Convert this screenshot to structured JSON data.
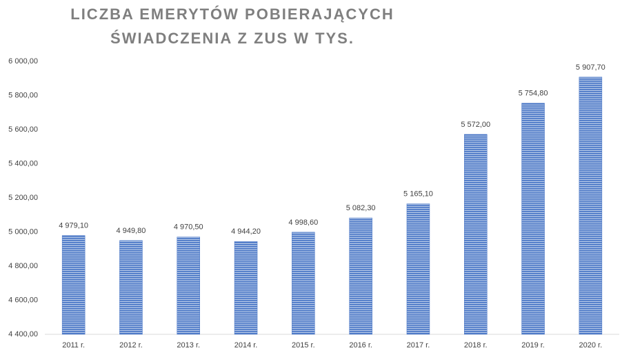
{
  "chart_data": {
    "type": "bar",
    "title": [
      "LICZBA EMERYTÓW POBIERAJĄCYCH",
      "ŚWIADCZENIA Z ZUS W TYS."
    ],
    "categories": [
      "2011 r.",
      "2012 r.",
      "2013 r.",
      "2014 r.",
      "2015 r.",
      "2016 r.",
      "2017 r.",
      "2018 r.",
      "2019 r.",
      "2020 r."
    ],
    "values": [
      4979.1,
      4949.8,
      4970.5,
      4944.2,
      4998.6,
      5082.3,
      5165.1,
      5572.0,
      5754.8,
      5907.7
    ],
    "value_labels": [
      "4 979,10",
      "4 949,80",
      "4 970,50",
      "4 944,20",
      "4 998,60",
      "5 082,30",
      "5 165,10",
      "5 572,00",
      "5 754,80",
      "5 907,70"
    ],
    "color": "#4472c4",
    "ylim": [
      4400,
      6000
    ],
    "yticks": [
      {
        "value": 4400,
        "label": "4 400,00"
      },
      {
        "value": 4600,
        "label": "4 600,00"
      },
      {
        "value": 4800,
        "label": "4 800,00"
      },
      {
        "value": 5000,
        "label": "5 000,00"
      },
      {
        "value": 5200,
        "label": "5 200,00"
      },
      {
        "value": 5400,
        "label": "5 400,00"
      },
      {
        "value": 5600,
        "label": "5 600,00"
      },
      {
        "value": 5800,
        "label": "5 800,00"
      },
      {
        "value": 6000,
        "label": "6 000,00"
      }
    ],
    "grid": false
  }
}
